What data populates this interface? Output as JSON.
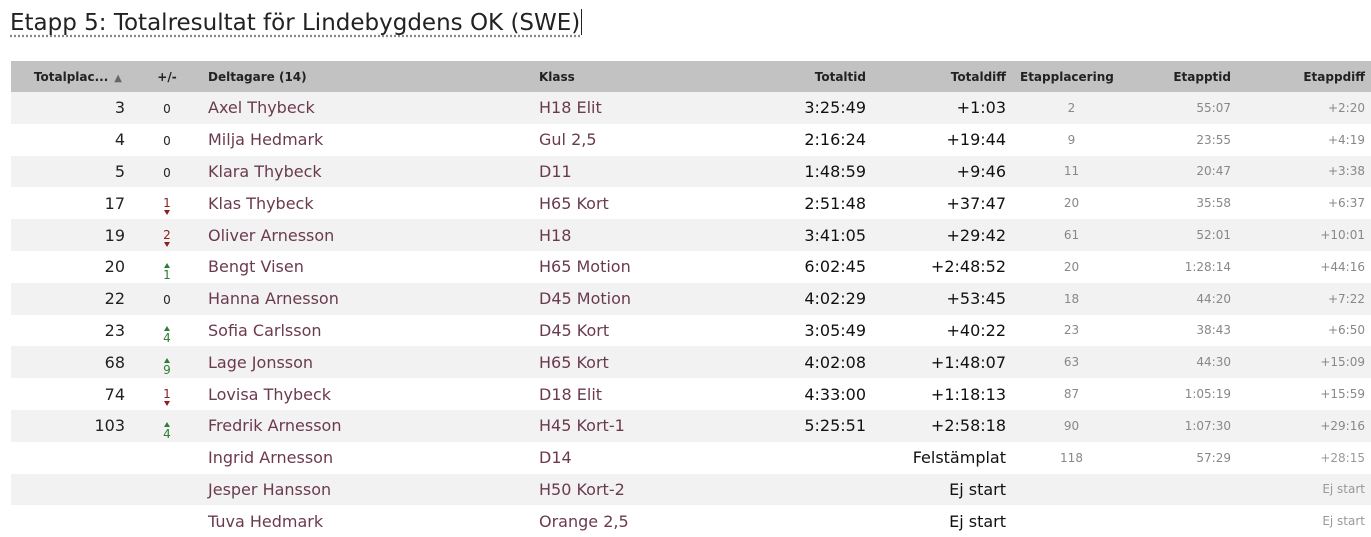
{
  "title": "Etapp 5: Totalresultat för Lindebygdens OK (SWE)",
  "colors": {
    "header_bg": "#c2c2c2",
    "name_color": "#6b3a4f",
    "up": "#2e7d32",
    "down": "#8b2020"
  },
  "headers": {
    "place": "Totalplac...",
    "sort_icon": "▲",
    "diff": "+/-",
    "name": "Deltagare (14)",
    "class": "Klass",
    "total_time": "Totaltid",
    "total_diff": "Totaldiff",
    "stage_place": "Etapplacering",
    "stage_time": "Etapptid",
    "stage_diff": "Etappdiff"
  },
  "rows": [
    {
      "place": "3",
      "change": "0",
      "dir": "same",
      "name": "Axel Thybeck",
      "class": "H18 Elit",
      "total_time": "3:25:49",
      "total_diff": "+1:03",
      "stage_place": "2",
      "stage_time": "55:07",
      "stage_diff": "+2:20"
    },
    {
      "place": "4",
      "change": "0",
      "dir": "same",
      "name": "Milja Hedmark",
      "class": "Gul 2,5",
      "total_time": "2:16:24",
      "total_diff": "+19:44",
      "stage_place": "9",
      "stage_time": "23:55",
      "stage_diff": "+4:19"
    },
    {
      "place": "5",
      "change": "0",
      "dir": "same",
      "name": "Klara Thybeck",
      "class": "D11",
      "total_time": "1:48:59",
      "total_diff": "+9:46",
      "stage_place": "11",
      "stage_time": "20:47",
      "stage_diff": "+3:38"
    },
    {
      "place": "17",
      "change": "1",
      "dir": "down",
      "name": "Klas Thybeck",
      "class": "H65 Kort",
      "total_time": "2:51:48",
      "total_diff": "+37:47",
      "stage_place": "20",
      "stage_time": "35:58",
      "stage_diff": "+6:37"
    },
    {
      "place": "19",
      "change": "2",
      "dir": "down",
      "name": "Oliver Arnesson",
      "class": "H18",
      "total_time": "3:41:05",
      "total_diff": "+29:42",
      "stage_place": "61",
      "stage_time": "52:01",
      "stage_diff": "+10:01"
    },
    {
      "place": "20",
      "change": "1",
      "dir": "up",
      "name": "Bengt Visen",
      "class": "H65 Motion",
      "total_time": "6:02:45",
      "total_diff": "+2:48:52",
      "stage_place": "20",
      "stage_time": "1:28:14",
      "stage_diff": "+44:16"
    },
    {
      "place": "22",
      "change": "0",
      "dir": "same",
      "name": "Hanna Arnesson",
      "class": "D45 Motion",
      "total_time": "4:02:29",
      "total_diff": "+53:45",
      "stage_place": "18",
      "stage_time": "44:20",
      "stage_diff": "+7:22"
    },
    {
      "place": "23",
      "change": "4",
      "dir": "up",
      "name": "Sofia Carlsson",
      "class": "D45 Kort",
      "total_time": "3:05:49",
      "total_diff": "+40:22",
      "stage_place": "23",
      "stage_time": "38:43",
      "stage_diff": "+6:50"
    },
    {
      "place": "68",
      "change": "9",
      "dir": "up",
      "name": "Lage Jonsson",
      "class": "H65 Kort",
      "total_time": "4:02:08",
      "total_diff": "+1:48:07",
      "stage_place": "63",
      "stage_time": "44:30",
      "stage_diff": "+15:09"
    },
    {
      "place": "74",
      "change": "1",
      "dir": "down",
      "name": "Lovisa Thybeck",
      "class": "D18 Elit",
      "total_time": "4:33:00",
      "total_diff": "+1:18:13",
      "stage_place": "87",
      "stage_time": "1:05:19",
      "stage_diff": "+15:59"
    },
    {
      "place": "103",
      "change": "4",
      "dir": "up",
      "name": "Fredrik Arnesson",
      "class": "H45 Kort-1",
      "total_time": "5:25:51",
      "total_diff": "+2:58:18",
      "stage_place": "90",
      "stage_time": "1:07:30",
      "stage_diff": "+29:16"
    },
    {
      "place": "",
      "change": "",
      "dir": "",
      "name": "Ingrid Arnesson",
      "class": "D14",
      "total_time": "",
      "total_diff": "Felstämplat",
      "stage_place": "118",
      "stage_time": "57:29",
      "stage_diff": "+28:15"
    },
    {
      "place": "",
      "change": "",
      "dir": "",
      "name": "Jesper Hansson",
      "class": "H50 Kort-2",
      "total_time": "",
      "total_diff": "Ej start",
      "stage_place": "",
      "stage_time": "",
      "stage_diff": "Ej start"
    },
    {
      "place": "",
      "change": "",
      "dir": "",
      "name": "Tuva Hedmark",
      "class": "Orange 2,5",
      "total_time": "",
      "total_diff": "Ej start",
      "stage_place": "",
      "stage_time": "",
      "stage_diff": "Ej start"
    }
  ]
}
